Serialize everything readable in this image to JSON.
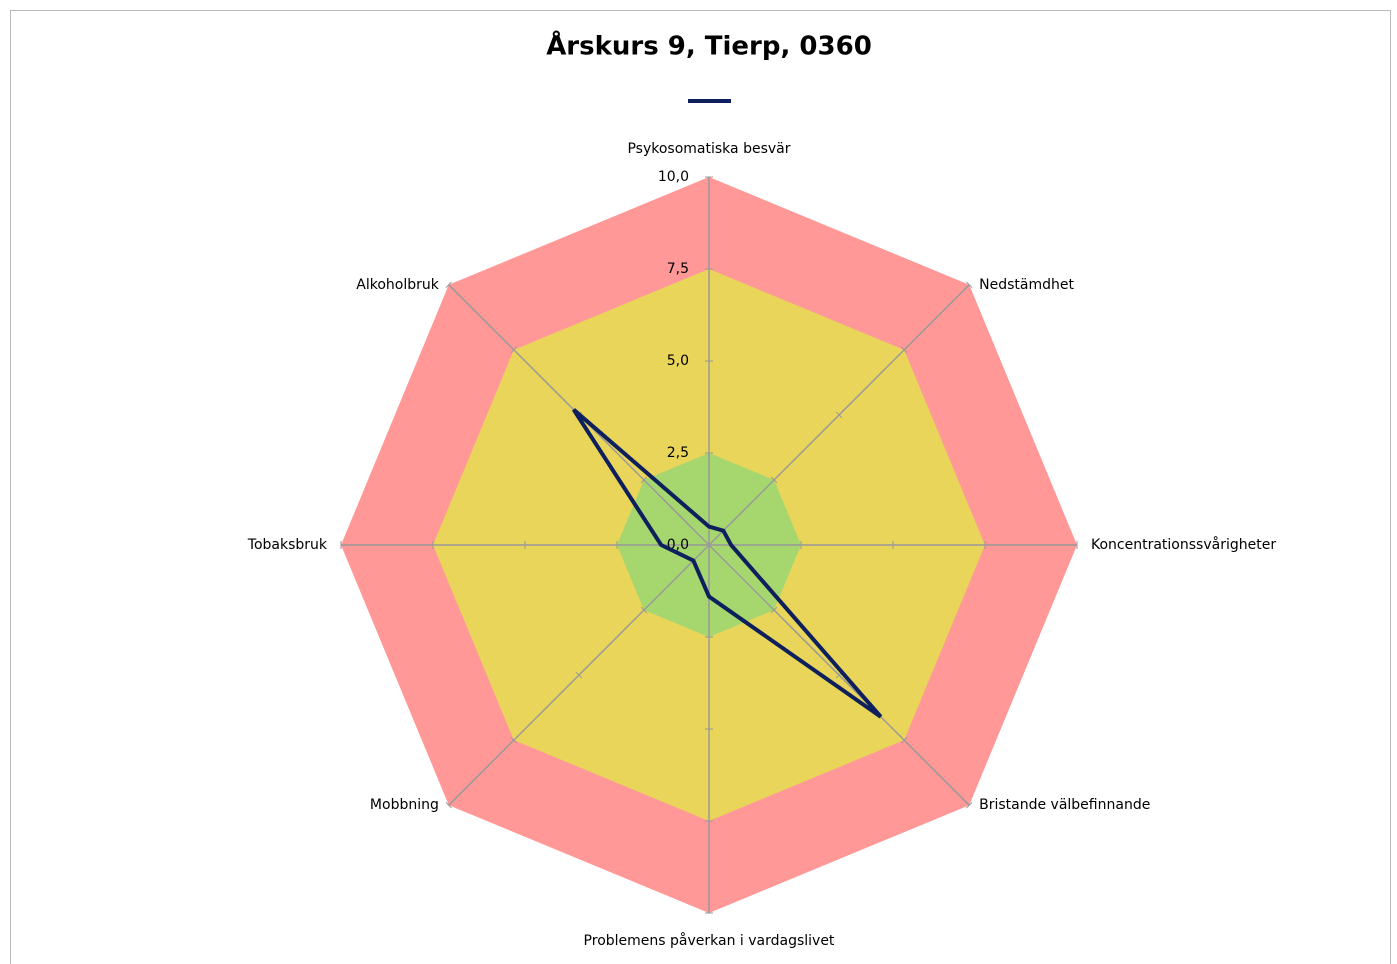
{
  "chart_data": {
    "type": "radar",
    "title": "Årskurs 9, Tierp, 0360",
    "categories": [
      "Psykosomatiska besvär",
      "Nedstämdhet",
      "Koncentrationssvårigheter",
      "Bristande välbefinnande",
      "Problemens påverkan i vardagslivet",
      "Mobbning",
      "Tobaksbruk",
      "Alkoholbruk"
    ],
    "series": [
      {
        "color": "#0d1f5c",
        "values": [
          0.5,
          0.55,
          0.6,
          6.6,
          1.4,
          0.6,
          1.3,
          5.2
        ]
      }
    ],
    "rlim": [
      0,
      10
    ],
    "rticks": [
      {
        "value": 0,
        "label": "0,0"
      },
      {
        "value": 2.5,
        "label": "2,5"
      },
      {
        "value": 5,
        "label": "5,0"
      },
      {
        "value": 7.5,
        "label": "7,5"
      },
      {
        "value": 10,
        "label": "10,0"
      }
    ],
    "bands": [
      {
        "from": 7.5,
        "to": 10,
        "color": "#ff9896"
      },
      {
        "from": 2.5,
        "to": 7.5,
        "color": "#e8d55a"
      },
      {
        "from": 0,
        "to": 2.5,
        "color": "#a6d66e"
      }
    ],
    "grid": true
  }
}
